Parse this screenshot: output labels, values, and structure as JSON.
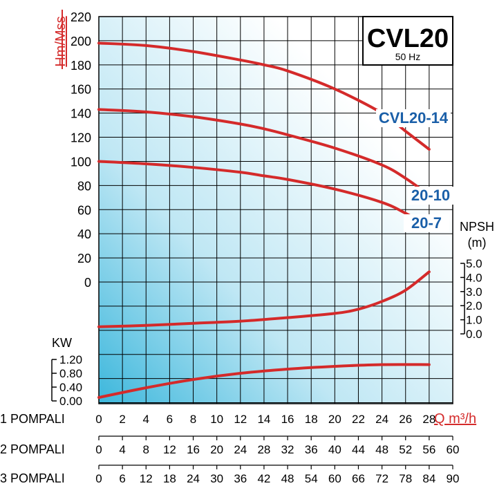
{
  "chart_data": {
    "type": "line",
    "title": "CVL20",
    "subtitle": "50 Hz",
    "colors": {
      "curve": "#d42a2a",
      "label": "#1a5fa8",
      "axis_label": "#d42a2a",
      "grid": "#000000",
      "gradient_start": "#3cb7dc",
      "gradient_end": "#ffffff"
    },
    "head_axis": {
      "label": "Hm/Mss",
      "ylim": [
        0,
        220
      ],
      "ticks": [
        "220",
        "200",
        "180",
        "160",
        "140",
        "120",
        "100",
        "80",
        "60",
        "40",
        "20",
        "0"
      ]
    },
    "npsh_axis": {
      "label_line1": "NPSH",
      "label_line2": "(m)",
      "ylim": [
        0,
        5
      ],
      "ticks": [
        "5.0",
        "4.0",
        "3.0",
        "2.0",
        "1.0",
        "0.0"
      ]
    },
    "kw_axis": {
      "label": "KW",
      "ylim": [
        0,
        1.2
      ],
      "ticks": [
        "1.20",
        "0.80",
        "0.40",
        "0.00"
      ]
    },
    "x_axis": {
      "label": "Q m³/h",
      "xlim": [
        0,
        30
      ],
      "rows": [
        {
          "label": "1 POMPALI",
          "ticks": [
            "0",
            "2",
            "4",
            "6",
            "8",
            "10",
            "12",
            "14",
            "16",
            "18",
            "20",
            "22",
            "24",
            "26",
            "28"
          ]
        },
        {
          "label": "2 POMPALI",
          "ticks": [
            "0",
            "4",
            "8",
            "12",
            "16",
            "20",
            "24",
            "28",
            "32",
            "36",
            "40",
            "44",
            "48",
            "52",
            "56",
            "60"
          ]
        },
        {
          "label": "3 POMPALI",
          "ticks": [
            "0",
            "6",
            "12",
            "18",
            "24",
            "30",
            "36",
            "42",
            "48",
            "54",
            "60",
            "66",
            "72",
            "78",
            "84",
            "90"
          ]
        }
      ]
    },
    "head_series": [
      {
        "name": "CVL20-14",
        "x": [
          0,
          4,
          8,
          12,
          14,
          16,
          20,
          24,
          26,
          28
        ],
        "y": [
          198,
          196,
          191,
          184,
          180,
          175,
          160,
          140,
          125,
          110
        ]
      },
      {
        "name": "20-10",
        "x": [
          0,
          4,
          8,
          12,
          14,
          16,
          20,
          24,
          26,
          28
        ],
        "y": [
          143,
          141,
          137,
          131,
          127,
          122,
          111,
          97,
          86,
          72
        ]
      },
      {
        "name": "20-7",
        "x": [
          0,
          4,
          8,
          12,
          14,
          16,
          20,
          24,
          26,
          28
        ],
        "y": [
          100,
          98,
          95,
          91,
          88,
          85,
          77,
          66,
          57,
          46
        ]
      }
    ],
    "npsh_series": {
      "x": [
        0,
        4,
        8,
        12,
        16,
        20,
        22,
        24,
        26,
        28
      ],
      "y": [
        0.5,
        0.6,
        0.75,
        0.9,
        1.15,
        1.45,
        1.75,
        2.3,
        3.1,
        4.4
      ]
    },
    "kw_series": {
      "x": [
        0,
        4,
        8,
        12,
        16,
        20,
        24,
        28
      ],
      "y": [
        0.1,
        0.38,
        0.62,
        0.8,
        0.92,
        1.0,
        1.05,
        1.05
      ]
    }
  }
}
